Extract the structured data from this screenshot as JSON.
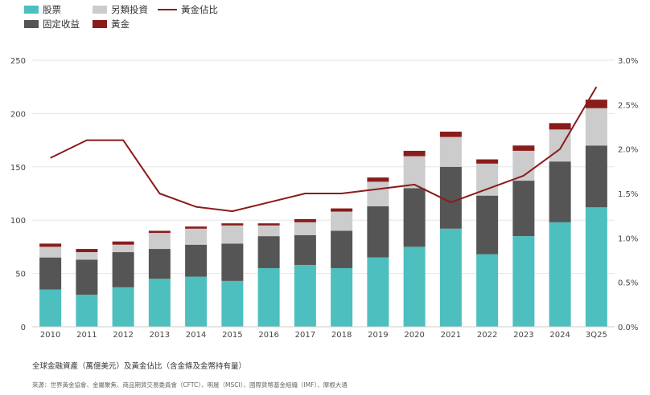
{
  "colors": {
    "stocks": "#4dbfbf",
    "fixed_income": "#555555",
    "alternatives": "#cccccc",
    "gold": "#8a1c1c",
    "gold_share_line": "#8a1c1c",
    "grid": "#e6e6e6",
    "axis_text": "#444444"
  },
  "legend": {
    "stocks": "股票",
    "alternatives": "另類投資",
    "gold_share": "黃金佔比",
    "fixed_income": "固定收益",
    "gold": "黃金"
  },
  "caption": "全球金融資產（萬億美元）及黃金佔比（含金條及金幣持有量）",
  "source": "來源：世界黃金協會、金屬聚焦、商品期貨交易委員會（CFTC）、明晟（MSCI）、國際貨幣基金組織（IMF）、摩根大通",
  "chart_data": {
    "type": "bar",
    "stacked": true,
    "categories": [
      "2010",
      "2011",
      "2012",
      "2013",
      "2014",
      "2015",
      "2016",
      "2017",
      "2018",
      "2019",
      "2020",
      "2021",
      "2022",
      "2023",
      "2024",
      "3Q25"
    ],
    "series": [
      {
        "name": "股票",
        "key": "stocks",
        "values": [
          35,
          30,
          37,
          45,
          47,
          43,
          55,
          58,
          55,
          65,
          75,
          92,
          68,
          85,
          98,
          112
        ]
      },
      {
        "name": "固定收益",
        "key": "fixed_income",
        "values": [
          30,
          33,
          33,
          28,
          30,
          35,
          30,
          28,
          35,
          48,
          55,
          58,
          55,
          52,
          57,
          58
        ]
      },
      {
        "name": "另類投資",
        "key": "alternatives",
        "values": [
          10,
          7,
          7,
          15,
          15,
          17,
          10,
          12,
          18,
          23,
          30,
          28,
          30,
          28,
          30,
          35
        ]
      },
      {
        "name": "黃金",
        "key": "gold",
        "values": [
          3,
          3,
          3,
          2,
          2,
          2,
          2,
          3,
          3,
          4,
          5,
          5,
          4,
          5,
          6,
          8
        ]
      }
    ],
    "line_series": {
      "name": "黃金佔比",
      "key": "gold_share",
      "axis": "right",
      "values": [
        1.9,
        2.1,
        2.1,
        1.5,
        1.35,
        1.3,
        1.4,
        1.5,
        1.5,
        1.55,
        1.6,
        1.4,
        1.55,
        1.7,
        2.0,
        2.7
      ]
    },
    "y_left": {
      "min": 0,
      "max": 250,
      "ticks": [
        0,
        50,
        100,
        150,
        200,
        250
      ],
      "tick_labels": [
        "0",
        "50",
        "100",
        "150",
        "200",
        "250"
      ]
    },
    "y_right": {
      "min": 0,
      "max": 3.0,
      "ticks": [
        0,
        0.5,
        1.0,
        1.5,
        2.0,
        2.5,
        3.0
      ],
      "tick_labels": [
        "0.0%",
        "0.5%",
        "1.0%",
        "1.5%",
        "2.0%",
        "2.5%",
        "3.0%"
      ]
    },
    "grid": true,
    "legend_position": "top-left"
  }
}
